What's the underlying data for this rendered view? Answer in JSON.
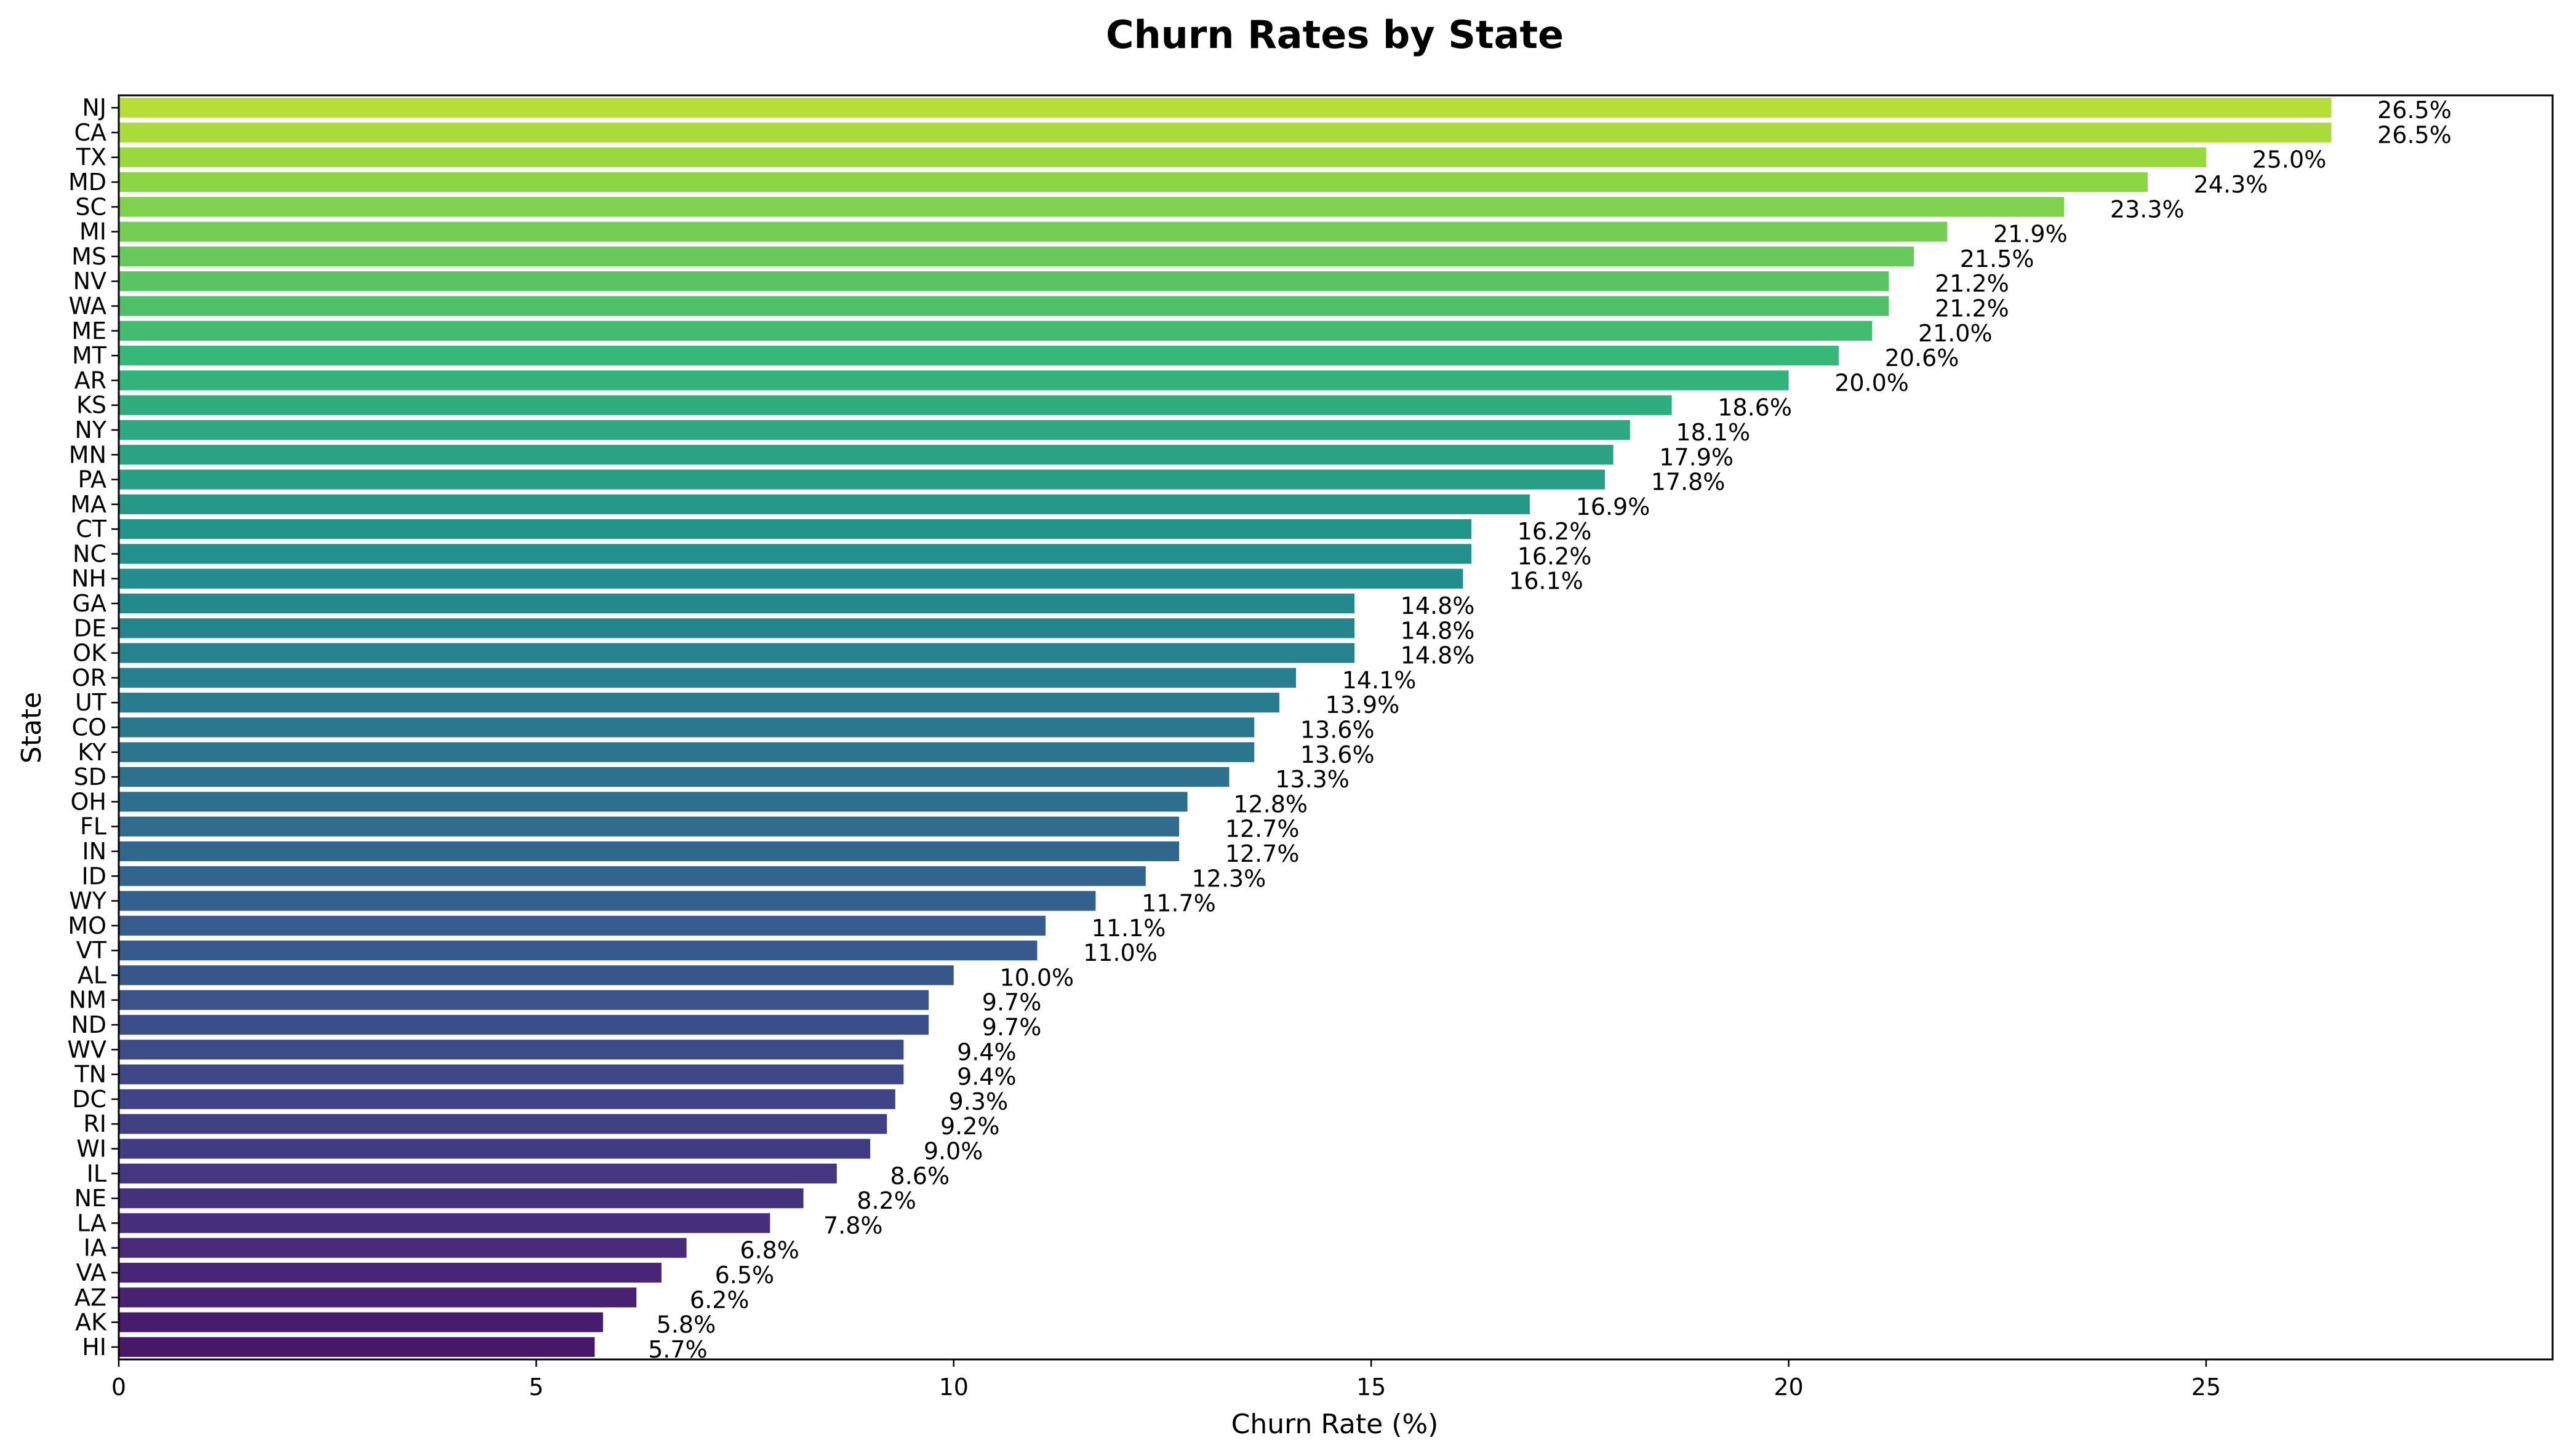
{
  "chart_data": {
    "type": "bar",
    "orientation": "horizontal",
    "title": "Churn Rates by State",
    "xlabel": "Churn Rate (%)",
    "ylabel": "State",
    "xlim": [
      0,
      29.15
    ],
    "xticks": [
      0,
      5,
      10,
      15,
      20,
      25
    ],
    "grid": false,
    "colormap": "viridis",
    "categories": [
      "NJ",
      "CA",
      "TX",
      "MD",
      "SC",
      "MI",
      "MS",
      "NV",
      "WA",
      "ME",
      "MT",
      "AR",
      "KS",
      "NY",
      "MN",
      "PA",
      "MA",
      "CT",
      "NC",
      "NH",
      "GA",
      "DE",
      "OK",
      "OR",
      "UT",
      "CO",
      "KY",
      "SD",
      "OH",
      "FL",
      "IN",
      "ID",
      "WY",
      "MO",
      "VT",
      "AL",
      "NM",
      "ND",
      "WV",
      "TN",
      "DC",
      "RI",
      "WI",
      "IL",
      "NE",
      "LA",
      "IA",
      "VA",
      "AZ",
      "AK",
      "HI"
    ],
    "values": [
      26.5,
      26.5,
      25.0,
      24.3,
      23.3,
      21.9,
      21.5,
      21.2,
      21.2,
      21.0,
      20.6,
      20.0,
      18.6,
      18.1,
      17.9,
      17.8,
      16.9,
      16.2,
      16.2,
      16.1,
      14.8,
      14.8,
      14.8,
      14.1,
      13.9,
      13.6,
      13.6,
      13.3,
      12.8,
      12.7,
      12.7,
      12.3,
      11.7,
      11.1,
      11.0,
      10.0,
      9.7,
      9.7,
      9.4,
      9.4,
      9.3,
      9.2,
      9.0,
      8.6,
      8.2,
      7.8,
      6.8,
      6.5,
      6.2,
      5.8,
      5.7
    ],
    "value_labels": [
      "26.5%",
      "26.5%",
      "25.0%",
      "24.3%",
      "23.3%",
      "21.9%",
      "21.5%",
      "21.2%",
      "21.2%",
      "21.0%",
      "20.6%",
      "20.0%",
      "18.6%",
      "18.1%",
      "17.9%",
      "17.8%",
      "16.9%",
      "16.2%",
      "16.2%",
      "16.1%",
      "14.8%",
      "14.8%",
      "14.8%",
      "14.1%",
      "13.9%",
      "13.6%",
      "13.6%",
      "13.3%",
      "12.8%",
      "12.7%",
      "12.7%",
      "12.3%",
      "11.7%",
      "11.1%",
      "11.0%",
      "10.0%",
      "9.7%",
      "9.7%",
      "9.4%",
      "9.4%",
      "9.3%",
      "9.2%",
      "9.0%",
      "8.6%",
      "8.2%",
      "7.8%",
      "6.8%",
      "6.5%",
      "6.2%",
      "5.8%",
      "5.7%"
    ]
  }
}
